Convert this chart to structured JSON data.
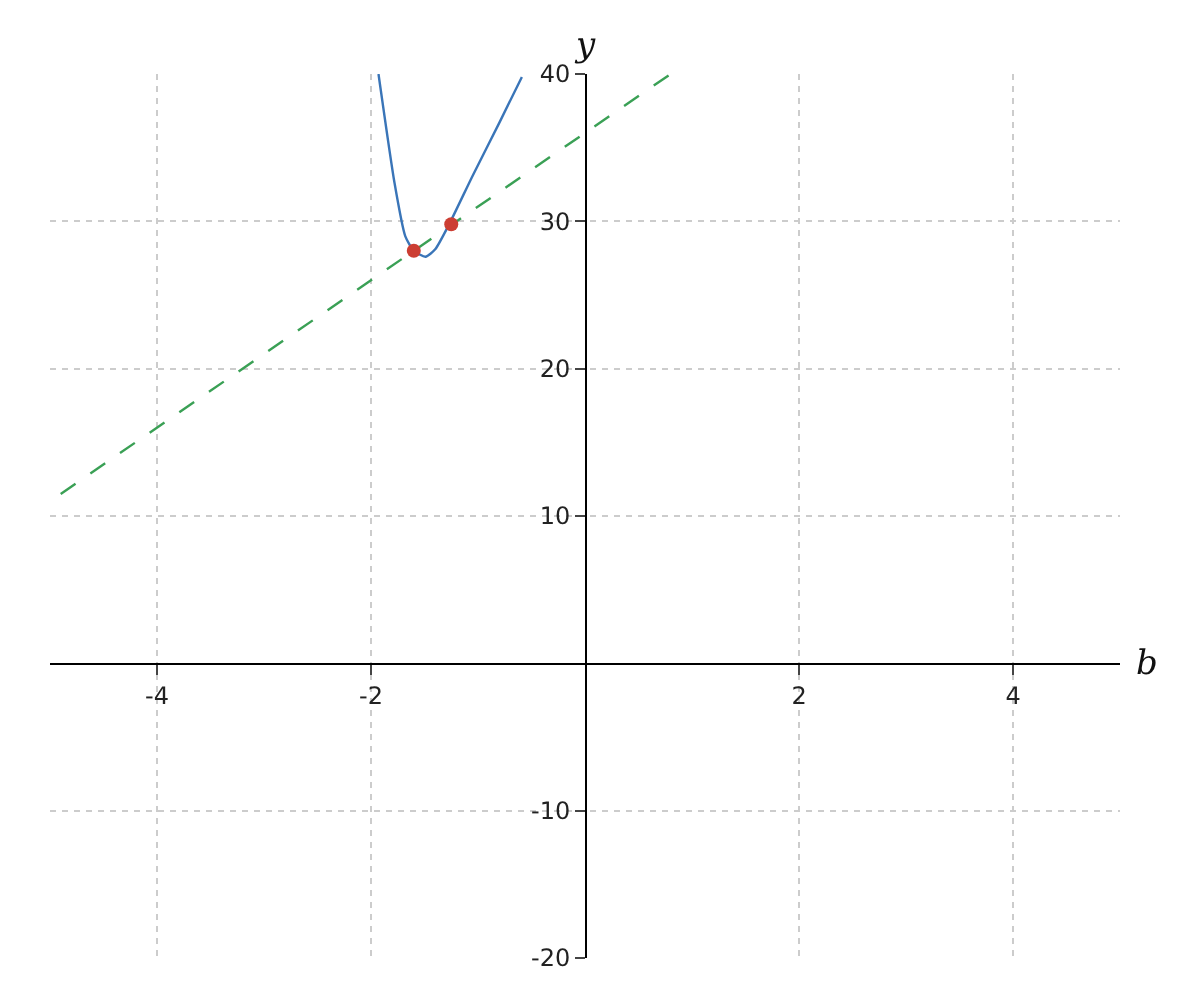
{
  "chart_data": {
    "type": "line",
    "xlabel": "b",
    "ylabel": "y",
    "xlim": [
      -5,
      5
    ],
    "ylim": [
      -20,
      40
    ],
    "xticks": [
      -4,
      -2,
      2,
      4
    ],
    "yticks": [
      -20,
      -10,
      10,
      20,
      30,
      40
    ],
    "grid": true,
    "series": [
      {
        "color": "#3a75b8",
        "marker": "none",
        "line_style": "solid",
        "x": [
          -1.93,
          -1.78,
          -1.68,
          -1.6,
          -1.49,
          -1.4,
          -1.27,
          -1.05,
          -0.8,
          -0.59
        ],
        "values": [
          40,
          32.6,
          29.0,
          28.0,
          27.6,
          28.1,
          29.8,
          33.1,
          36.7,
          39.8
        ]
      },
      {
        "type": "line",
        "color": "#3aa055",
        "marker": "none",
        "line_style": "dashed",
        "x": [
          -4.9,
          0.8
        ],
        "values": [
          11.5,
          40
        ]
      },
      {
        "type": "scatter",
        "color": "#cc3e33",
        "marker": "circle",
        "x": [
          -1.6,
          -1.25
        ],
        "values": [
          28,
          29.8
        ]
      }
    ]
  }
}
